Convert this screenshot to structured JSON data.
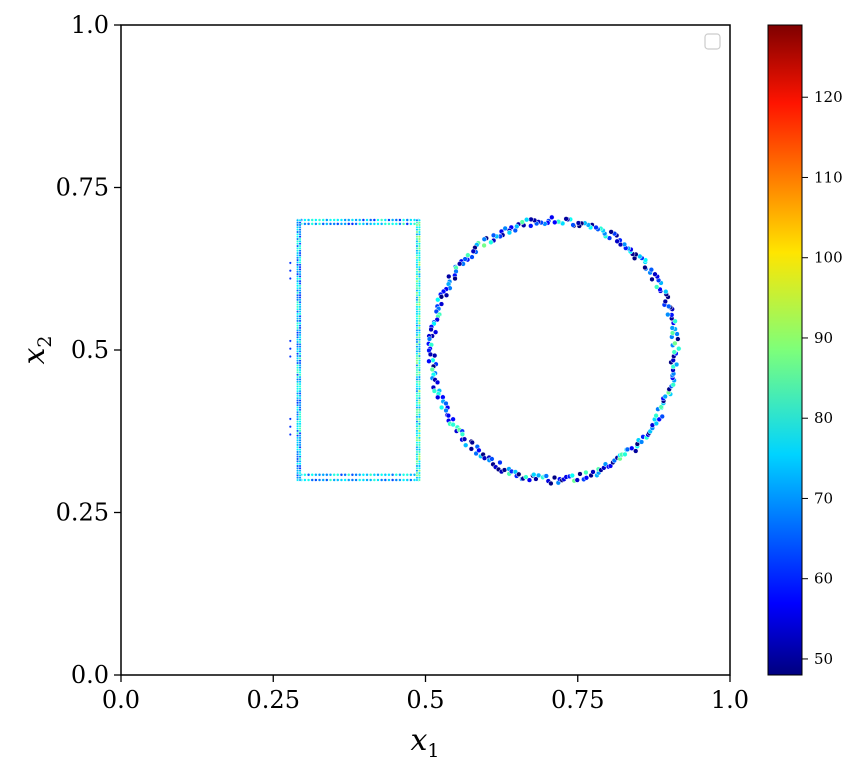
{
  "chart_data": {
    "type": "scatter",
    "xlabel": "x",
    "xlabel_sub": "1",
    "ylabel": "x",
    "ylabel_sub": "2",
    "xlim": [
      0.0,
      1.0
    ],
    "ylim": [
      0.0,
      1.0
    ],
    "xticks": [
      0.0,
      0.25,
      0.5,
      0.75,
      1.0
    ],
    "yticks": [
      0.0,
      0.25,
      0.5,
      0.75,
      1.0
    ],
    "xtick_labels": [
      "0.0",
      "0.25",
      "0.5",
      "0.75",
      "1.0"
    ],
    "ytick_labels": [
      "0.0",
      "0.25",
      "0.5",
      "0.75",
      "1.0"
    ],
    "grid": false,
    "legend": {
      "placement": "top-right",
      "entries": []
    },
    "colormap": "jet",
    "colorbar": {
      "range": [
        48,
        129
      ],
      "ticks": [
        50,
        60,
        70,
        80,
        90,
        100,
        110,
        120
      ],
      "tick_labels": [
        "50",
        "60",
        "70",
        "80",
        "90",
        "100",
        "110",
        "120"
      ]
    },
    "shapes": [
      {
        "kind": "rectangle",
        "x_range": [
          0.29,
          0.49
        ],
        "y_range": [
          0.3,
          0.7
        ],
        "point_spacing": 0.006,
        "typical_value": 70
      },
      {
        "kind": "circle",
        "center": [
          0.71,
          0.5
        ],
        "radius": 0.2,
        "point_count": 300,
        "typical_value": 60
      }
    ]
  }
}
